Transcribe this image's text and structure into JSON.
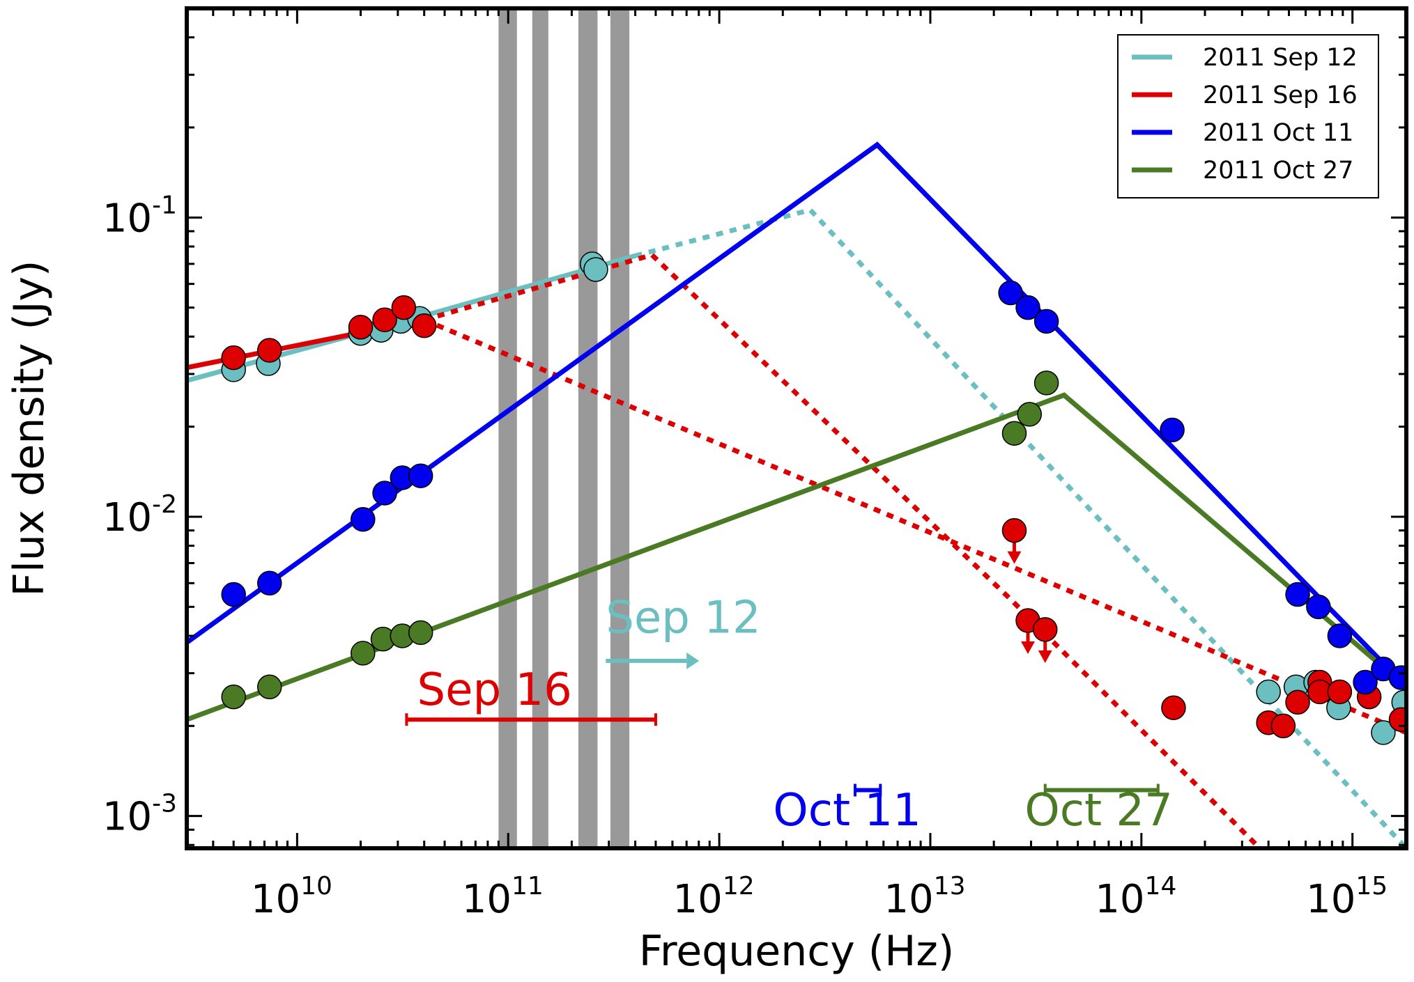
{
  "chart_data": {
    "type": "scatter",
    "title": "",
    "xlabel": "Frequency (Hz)",
    "ylabel": "Flux density (Jy)",
    "x_scale": "log",
    "y_scale": "log",
    "xlim": [
      3000000000.0,
      1800000000000000.0
    ],
    "ylim": [
      0.00078,
      0.5
    ],
    "grid": false,
    "legend_position": "top-right",
    "x_ticks": [
      {
        "value": 10000000000.0,
        "base": "10",
        "exp": "10"
      },
      {
        "value": 100000000000.0,
        "base": "10",
        "exp": "11"
      },
      {
        "value": 1000000000000.0,
        "base": "10",
        "exp": "12"
      },
      {
        "value": 10000000000000.0,
        "base": "10",
        "exp": "13"
      },
      {
        "value": 100000000000000.0,
        "base": "10",
        "exp": "14"
      },
      {
        "value": 1000000000000000.0,
        "base": "10",
        "exp": "15"
      }
    ],
    "y_ticks": [
      {
        "value": 0.001,
        "base": "10",
        "exp": "-3"
      },
      {
        "value": 0.01,
        "base": "10",
        "exp": "-2"
      },
      {
        "value": 0.1,
        "base": "10",
        "exp": "-1"
      }
    ],
    "shaded_bands": [
      [
        90000000000.0,
        110000000000.0
      ],
      [
        130000000000.0,
        155000000000.0
      ],
      [
        215000000000.0,
        265000000000.0
      ],
      [
        305000000000.0,
        375000000000.0
      ]
    ],
    "series": [
      {
        "name": "2011 Sep 12",
        "color": "#6bbfc0",
        "points": [
          {
            "x": 5000000000.0,
            "y": 0.031
          },
          {
            "x": 7300000000.0,
            "y": 0.0325
          },
          {
            "x": 20000000000.0,
            "y": 0.041
          },
          {
            "x": 25000000000.0,
            "y": 0.042
          },
          {
            "x": 31000000000.0,
            "y": 0.045
          },
          {
            "x": 38000000000.0,
            "y": 0.046
          },
          {
            "x": 250000000000.0,
            "y": 0.07
          },
          {
            "x": 260000000000.0,
            "y": 0.067
          },
          {
            "x": 400000000000000.0,
            "y": 0.0026
          },
          {
            "x": 540000000000000.0,
            "y": 0.0027
          },
          {
            "x": 670000000000000.0,
            "y": 0.0028
          },
          {
            "x": 860000000000000.0,
            "y": 0.0023
          },
          {
            "x": 1400000000000000.0,
            "y": 0.0019
          },
          {
            "x": 1750000000000000.0,
            "y": 0.0024
          }
        ],
        "fit_solid": [
          [
            3000000000.0,
            0.0285
          ],
          [
            38000000000.0,
            0.0465
          ],
          [
            400000000000.0,
            0.0745
          ]
        ],
        "fit_dashed": [
          [
            400000000000.0,
            0.0745
          ],
          [
            2700000000000.0,
            0.106
          ],
          [
            1800000000000000.0,
            0.00078
          ]
        ]
      },
      {
        "name": "2011 Sep 16",
        "color": "#dd0000",
        "points": [
          {
            "x": 5000000000.0,
            "y": 0.034
          },
          {
            "x": 7400000000.0,
            "y": 0.036
          },
          {
            "x": 20000000000.0,
            "y": 0.043
          },
          {
            "x": 26000000000.0,
            "y": 0.0455
          },
          {
            "x": 32000000000.0,
            "y": 0.05
          },
          {
            "x": 40000000000.0,
            "y": 0.0435
          },
          {
            "x": 400000000000000.0,
            "y": 0.00205
          },
          {
            "x": 470000000000000.0,
            "y": 0.002
          },
          {
            "x": 550000000000000.0,
            "y": 0.0024
          },
          {
            "x": 700000000000000.0,
            "y": 0.0028
          },
          {
            "x": 700000000000000.0,
            "y": 0.0026
          },
          {
            "x": 870000000000000.0,
            "y": 0.0026
          },
          {
            "x": 1200000000000000.0,
            "y": 0.0025
          },
          {
            "x": 1700000000000000.0,
            "y": 0.0021
          },
          {
            "x": 142000000000000.0,
            "y": 0.0023
          }
        ],
        "upper_limits": [
          {
            "x": 25000000000000.0,
            "y": 0.009
          },
          {
            "x": 29000000000000.0,
            "y": 0.0045
          },
          {
            "x": 35000000000000.0,
            "y": 0.0042
          }
        ],
        "fit_solid": [
          [
            3000000000.0,
            0.0315
          ],
          [
            40000000000.0,
            0.0455
          ]
        ],
        "fit_dashed": [
          [
            40000000000.0,
            0.0455
          ],
          [
            480000000000.0,
            0.075
          ],
          [
            24000000000000.0,
            0.0053
          ],
          [
            400000000000000.0,
            0.00073
          ]
        ],
        "fit_dashed_2": [
          [
            40000000000.0,
            0.0455
          ],
          [
            1800000000000000.0,
            0.0019
          ]
        ]
      },
      {
        "name": "2011 Oct 11",
        "color": "#0000ee",
        "points": [
          {
            "x": 5000000000.0,
            "y": 0.0055
          },
          {
            "x": 7400000000.0,
            "y": 0.006
          },
          {
            "x": 20500000000.0,
            "y": 0.0098
          },
          {
            "x": 26000000000.0,
            "y": 0.012
          },
          {
            "x": 31500000000.0,
            "y": 0.0135
          },
          {
            "x": 38500000000.0,
            "y": 0.0137
          },
          {
            "x": 24000000000000.0,
            "y": 0.056
          },
          {
            "x": 29000000000000.0,
            "y": 0.05
          },
          {
            "x": 35500000000000.0,
            "y": 0.045
          },
          {
            "x": 140000000000000.0,
            "y": 0.0195
          },
          {
            "x": 550000000000000.0,
            "y": 0.0055
          },
          {
            "x": 690000000000000.0,
            "y": 0.005
          },
          {
            "x": 870000000000000.0,
            "y": 0.004
          },
          {
            "x": 1150000000000000.0,
            "y": 0.0028
          },
          {
            "x": 1400000000000000.0,
            "y": 0.0031
          },
          {
            "x": 1700000000000000.0,
            "y": 0.0029
          }
        ],
        "fit_solid": [
          [
            3000000000.0,
            0.0038
          ],
          [
            5600000000000.0,
            0.175
          ],
          [
            1800000000000000.0,
            0.0027
          ]
        ]
      },
      {
        "name": "2011 Oct 27",
        "color": "#4a7a23",
        "points": [
          {
            "x": 5000000000.0,
            "y": 0.0025
          },
          {
            "x": 7400000000.0,
            "y": 0.0027
          },
          {
            "x": 20500000000.0,
            "y": 0.0035
          },
          {
            "x": 25500000000.0,
            "y": 0.0039
          },
          {
            "x": 31500000000.0,
            "y": 0.004
          },
          {
            "x": 38500000000.0,
            "y": 0.0041
          },
          {
            "x": 25000000000000.0,
            "y": 0.019
          },
          {
            "x": 29500000000000.0,
            "y": 0.022
          },
          {
            "x": 35500000000000.0,
            "y": 0.028
          }
        ],
        "fit_solid": [
          [
            3000000000.0,
            0.0021
          ],
          [
            43000000000000.0,
            0.0255
          ],
          [
            1800000000000000.0,
            0.0027
          ]
        ]
      }
    ],
    "annotations": [
      {
        "text": "Sep 12",
        "color": "#6bbfc0",
        "x": 290000000000.0,
        "y": 0.0041
      },
      {
        "text": "Sep 16",
        "color": "#dd0000",
        "x": 37000000000.0,
        "y": 0.00235
      },
      {
        "text": "Oct 11",
        "color": "#0000ee",
        "x": 1800000000000.0,
        "y": 0.00093
      },
      {
        "text": "Oct 27",
        "color": "#4a7a23",
        "x": 28000000000000.0,
        "y": 0.00093
      }
    ],
    "range_bars": [
      {
        "color": "#dd0000",
        "x1": 33000000000.0,
        "x2": 500000000000.0,
        "y": 0.0021
      },
      {
        "color": "#6bbfc0",
        "x1": 290000000000.0,
        "x2": 700000000000.0,
        "y": 0.0033,
        "arrow": true
      },
      {
        "color": "#0000ee",
        "x1": 4400000000000.0,
        "x2": 5800000000000.0,
        "y": 0.00122
      },
      {
        "color": "#4a7a23",
        "x1": 35000000000000.0,
        "x2": 120000000000000.0,
        "y": 0.00122
      }
    ]
  }
}
